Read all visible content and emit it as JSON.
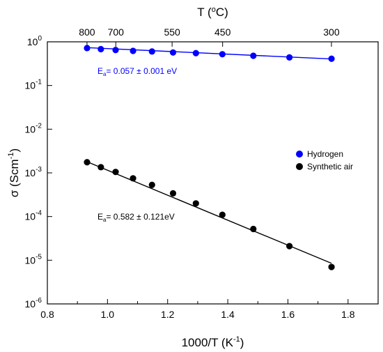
{
  "chart_data": {
    "type": "scatter",
    "x_axis": {
      "label_main": "1000/T (K",
      "label_sup": "-1",
      "label_end": ")",
      "range": [
        0.8,
        1.9
      ],
      "ticks": [
        0.8,
        1.0,
        1.2,
        1.4,
        1.6,
        1.8
      ],
      "tick_labels": [
        "0.8",
        "1.0",
        "1.2",
        "1.4",
        "1.6",
        "1.8"
      ]
    },
    "y_axis": {
      "label_main": "σ (Scm",
      "label_sup": "-1",
      "label_end": ")",
      "scale": "log",
      "range": [
        1e-06,
        1
      ],
      "ticks": [
        {
          "base": "10",
          "exp": "0",
          "value": 1
        },
        {
          "base": "10",
          "exp": "-1",
          "value": 0.1
        },
        {
          "base": "10",
          "exp": "-2",
          "value": 0.01
        },
        {
          "base": "10",
          "exp": "-3",
          "value": 0.001
        },
        {
          "base": "10",
          "exp": "-4",
          "value": 0.0001
        },
        {
          "base": "10",
          "exp": "-5",
          "value": 1e-05
        },
        {
          "base": "10",
          "exp": "-6",
          "value": 1e-06
        }
      ]
    },
    "top_axis": {
      "label_main": "T (",
      "label_sup": "o",
      "label_end": "C)",
      "ticks": [
        {
          "label": "800",
          "value_c": 800
        },
        {
          "label": "700",
          "value_c": 700
        },
        {
          "label": "550",
          "value_c": 550
        },
        {
          "label": "450",
          "value_c": 450
        },
        {
          "label": "300",
          "value_c": 300
        }
      ]
    },
    "series": [
      {
        "name": "Hydrogen",
        "color": "#0000ff",
        "x": [
          0.932,
          0.978,
          1.027,
          1.085,
          1.148,
          1.218,
          1.294,
          1.382,
          1.485,
          1.605,
          1.745
        ],
        "y": [
          0.72,
          0.68,
          0.65,
          0.62,
          0.6,
          0.57,
          0.55,
          0.52,
          0.48,
          0.44,
          0.41
        ],
        "fit": {
          "x": [
            0.932,
            1.745
          ],
          "y": [
            0.735,
            0.405
          ]
        }
      },
      {
        "name": "Synthetic air",
        "color": "#000000",
        "x": [
          0.932,
          0.978,
          1.027,
          1.085,
          1.148,
          1.218,
          1.294,
          1.382,
          1.485,
          1.605,
          1.745
        ],
        "y": [
          0.00175,
          0.00135,
          0.00105,
          0.00075,
          0.00053,
          0.00034,
          0.0002,
          0.00011,
          5.2e-05,
          2.1e-05,
          7e-06
        ],
        "fit": {
          "x": [
            0.932,
            1.745
          ],
          "y": [
            0.0018,
            8.5e-06
          ]
        }
      }
    ],
    "legend": {
      "position": "right-middle"
    },
    "annotations": [
      {
        "id": "hydrogen",
        "prefix": "E",
        "sub": "a",
        "text": "= 0.057 ± 0.001 eV",
        "color": "#0000ff"
      },
      {
        "id": "air",
        "prefix": "E",
        "sub": "a",
        "text": "= 0.582 ± 0.121eV",
        "color": "#000000"
      }
    ]
  }
}
